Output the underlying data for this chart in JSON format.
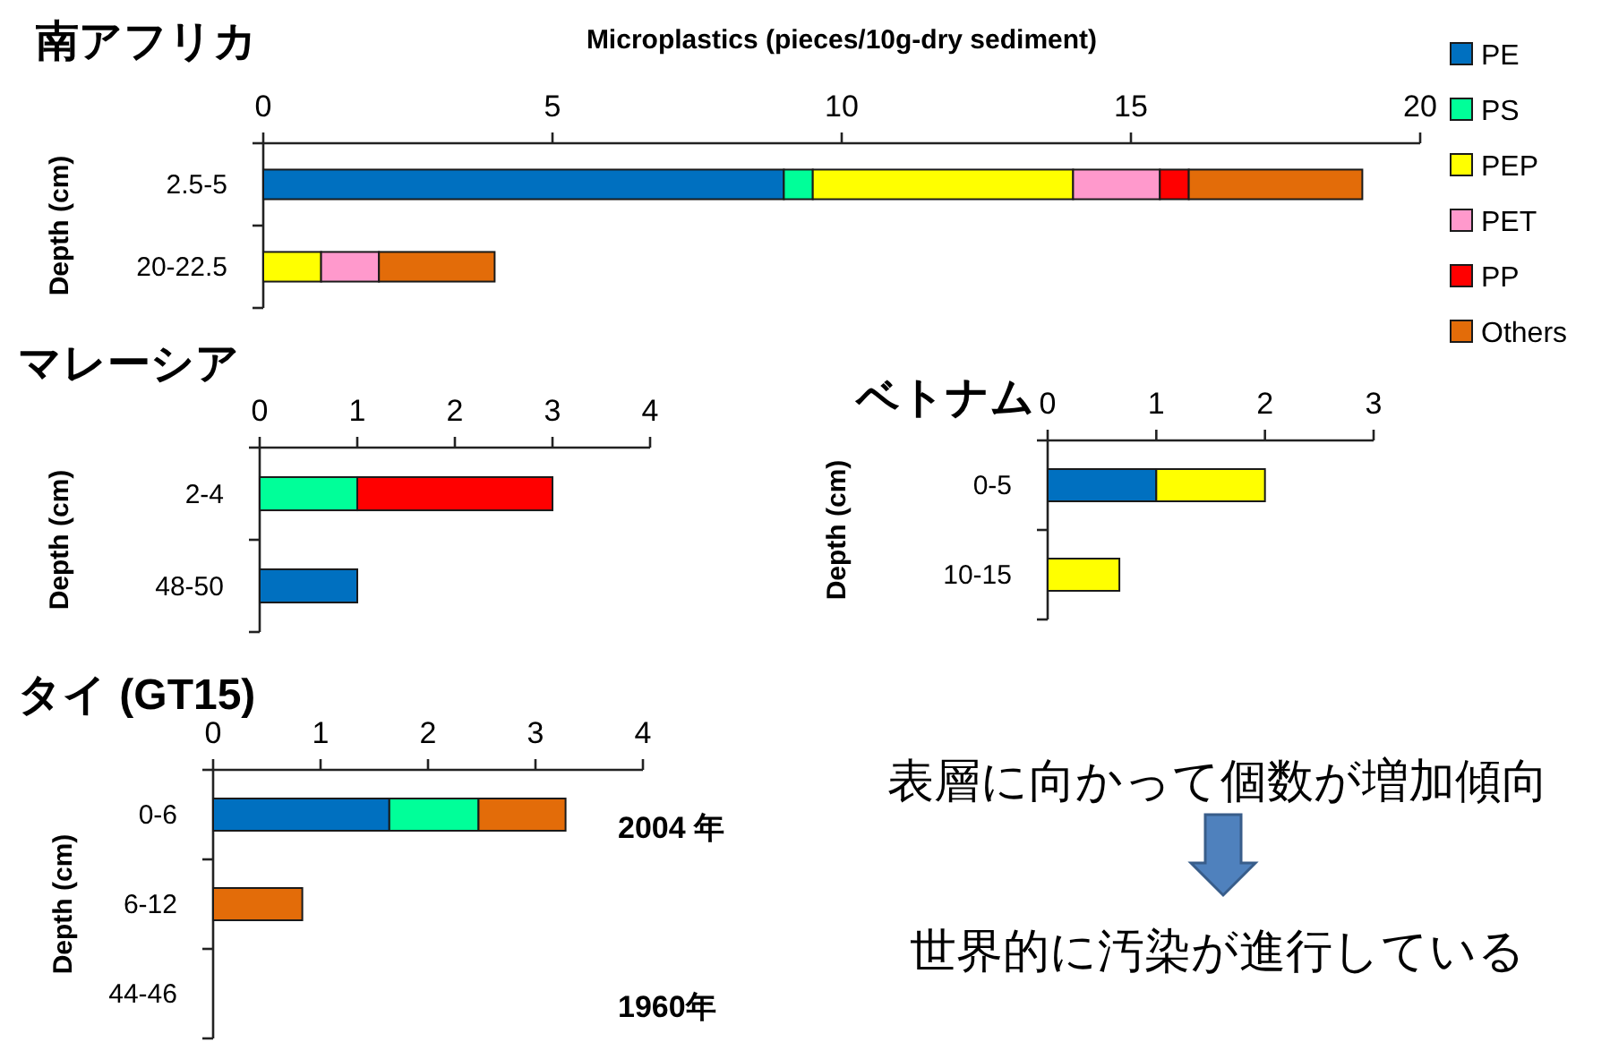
{
  "chart_data": [
    {
      "type": "bar",
      "orientation": "horizontal",
      "stacked": true,
      "title": "南アフリカ",
      "xlabel": "Microplastics (pieces/10g-dry sediment)",
      "ylabel": "Depth (cm)",
      "categories": [
        "2.5-5",
        "20-22.5"
      ],
      "xlim": [
        0,
        20
      ],
      "xticks": [
        0,
        5,
        10,
        15,
        20
      ],
      "legend": "right",
      "series": [
        {
          "name": "PE",
          "color": "#0070c0",
          "values": [
            9,
            null
          ]
        },
        {
          "name": "PS",
          "color": "#00ff99",
          "values": [
            0.5,
            null
          ]
        },
        {
          "name": "PEP",
          "color": "#ffff00",
          "values": [
            4.5,
            1
          ]
        },
        {
          "name": "PET",
          "color": "#ff99cc",
          "values": [
            1.5,
            1
          ]
        },
        {
          "name": "PP",
          "color": "#ff0000",
          "values": [
            0.5,
            null
          ]
        },
        {
          "name": "Others",
          "color": "#e36c09",
          "values": [
            3,
            2
          ]
        }
      ]
    },
    {
      "type": "bar",
      "orientation": "horizontal",
      "stacked": true,
      "title": "マレーシア",
      "ylabel": "Depth (cm)",
      "categories": [
        "2-4",
        "48-50"
      ],
      "xlim": [
        0,
        4
      ],
      "xticks": [
        0,
        1,
        2,
        3,
        4
      ],
      "series": [
        {
          "color": "#0070c0",
          "values": [
            null,
            1
          ]
        },
        {
          "color": "#00ff99",
          "values": [
            1,
            null
          ]
        },
        {
          "color": "#ff0000",
          "values": [
            2,
            null
          ]
        }
      ]
    },
    {
      "type": "bar",
      "orientation": "horizontal",
      "stacked": true,
      "title": "ベトナム",
      "ylabel": "Depth (cm)",
      "categories": [
        "0-5",
        "10-15"
      ],
      "xlim": [
        0,
        3
      ],
      "xticks": [
        0,
        1,
        2,
        3
      ],
      "series": [
        {
          "color": "#0070c0",
          "values": [
            1,
            null
          ]
        },
        {
          "color": "#ffff00",
          "values": [
            1,
            0.66
          ]
        }
      ]
    },
    {
      "type": "bar",
      "orientation": "horizontal",
      "stacked": true,
      "title": "タイ (GT15)",
      "ylabel": "Depth (cm)",
      "categories": [
        "0-6",
        "6-12",
        "44-46"
      ],
      "xlim": [
        0,
        4
      ],
      "xticks": [
        0,
        1,
        2,
        3,
        4
      ],
      "series": [
        {
          "color": "#0070c0",
          "values": [
            1.64,
            null,
            null
          ]
        },
        {
          "color": "#00ff99",
          "values": [
            0.83,
            null,
            null
          ]
        },
        {
          "color": "#e36c09",
          "values": [
            0.81,
            0.83,
            null
          ]
        }
      ],
      "annotations": [
        "2004 年",
        "1960年"
      ]
    },
    {
      "type": "other",
      "annotations": [
        "表層に向かって個数が増加傾向",
        "世界的に汚染が進行している"
      ]
    }
  ]
}
